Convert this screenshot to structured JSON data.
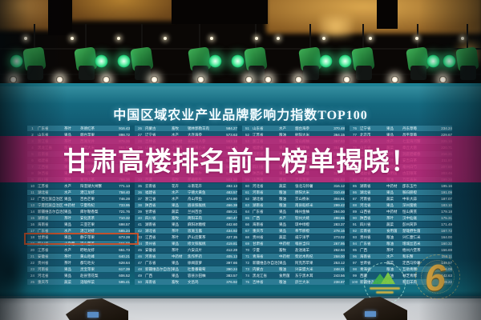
{
  "screen": {
    "title": "中国区域农业产业品牌影响力指数TOP100",
    "banner": {
      "text": "甘肃高楼排名前十榜单揭晓！",
      "color": "#c72276"
    },
    "logo": {
      "numeral": "6"
    },
    "highlight": {
      "group_index": 0,
      "rank": 18,
      "border_color": "#c2512c"
    },
    "table": {
      "groups": [
        [
          [
            1,
            "广东省",
            "茶叶",
            "英德红茶",
            "916.43"
          ],
          [
            2,
            "山东省",
            "果品",
            "烟台苹果",
            "898.72"
          ],
          [
            3,
            "浙江省",
            "茶叶",
            "西湖龙井",
            "875.26"
          ],
          [
            4,
            "黑龙江省",
            "粮油",
            "五常大米",
            "861.90"
          ],
          [
            5,
            "云南省",
            "茶叶",
            "普洱茶",
            "843.57"
          ],
          [
            6,
            "福建省",
            "茶叶",
            "安溪铁观音",
            "828.14"
          ],
          [
            7,
            "江西省",
            "果品",
            "赣南脐橙",
            "815.62"
          ],
          [
            8,
            "陕西省",
            "果品",
            "洛川苹果",
            "801.48"
          ],
          [
            9,
            "四川省",
            "茶叶",
            "蒙顶山茶",
            "786.35"
          ],
          [
            10,
            "江苏省",
            "水产",
            "阳澄湖大闸蟹",
            "771.13"
          ],
          [
            11,
            "湖北省",
            "水产",
            "潜江龙虾",
            "758.40"
          ],
          [
            12,
            "广西壮族自治区",
            "果品",
            "百色芒果",
            "746.28"
          ],
          [
            13,
            "宁夏回族自治区",
            "中药材",
            "宁夏枸杞",
            "733.95"
          ],
          [
            14,
            "新疆维吾尔自治区",
            "果品",
            "库尔勒香梨",
            "721.76"
          ],
          [
            15,
            "湖南省",
            "茶叶",
            "安化黑茶",
            "710.32"
          ],
          [
            16,
            "海南省",
            "果品",
            "三亚芒果",
            "698.57"
          ],
          [
            17,
            "广东省",
            "水产",
            "湛江对虾",
            "685.24"
          ],
          [
            18,
            "甘肃省",
            "果品",
            "静宁苹果",
            "673.28"
          ],
          [
            19,
            "四川省",
            "小杂粮",
            "凉山苦荞",
            "661.90"
          ],
          [
            20,
            "江苏省",
            "水产",
            "盱眙龙虾",
            "651.73"
          ],
          [
            21,
            "安徽省",
            "茶叶",
            "黄山毛峰",
            "640.21"
          ],
          [
            22,
            "贵州省",
            "茶叶",
            "都匀毛尖",
            "628.64"
          ],
          [
            23,
            "河南省",
            "果品",
            "灵宝苹果",
            "617.39"
          ],
          [
            24,
            "河北省",
            "果品",
            "赵县雪花梨",
            "606.52"
          ],
          [
            25,
            "重庆市",
            "蔬菜",
            "涪陵榨菜",
            "595.41"
          ]
        ],
        [
          [
            26,
            "内蒙古",
            "畜牧",
            "锡林郭勒羊肉",
            "584.27"
          ],
          [
            27,
            "辽宁省",
            "水产",
            "大连海参",
            "573.63"
          ],
          [
            28,
            "吉林省",
            "中药材",
            "长白山人参",
            "562.18"
          ],
          [
            29,
            "山西省",
            "小杂粮",
            "沁州黄小米",
            "551.40"
          ],
          [
            30,
            "北京市",
            "果品",
            "平谷大桃",
            "540.96"
          ],
          [
            31,
            "天津市",
            "果品",
            "盘山磨盘柿",
            "530.72"
          ],
          [
            32,
            "山东省",
            "蔬菜",
            "寿光蔬菜",
            "520.35"
          ],
          [
            33,
            "青海省",
            "畜牧",
            "青海牦牛",
            "510.84"
          ],
          [
            34,
            "西藏",
            "畜牧",
            "那曲牦牛",
            "501.26"
          ],
          [
            35,
            "云南省",
            "花卉",
            "斗南花卉",
            "492.13"
          ],
          [
            36,
            "福建省",
            "水产",
            "宁德大黄鱼",
            "483.57"
          ],
          [
            37,
            "浙江省",
            "水产",
            "舟山带鱼",
            "474.90"
          ],
          [
            38,
            "陕西省",
            "果品",
            "眉县猕猴桃",
            "466.38"
          ],
          [
            39,
            "甘肃省",
            "蔬菜",
            "兰州百合",
            "458.21"
          ],
          [
            40,
            "四川省",
            "畜牧",
            "简阳羊肉",
            "450.47"
          ],
          [
            41,
            "湖南省",
            "果品",
            "麻阳冰糖橙",
            "442.60"
          ],
          [
            42,
            "湖北省",
            "茶叶",
            "恩施玉露",
            "434.92"
          ],
          [
            43,
            "江西省",
            "茶叶",
            "庐山云雾茶",
            "427.35"
          ],
          [
            44,
            "贵州省",
            "果品",
            "修文猕猴桃",
            "419.81"
          ],
          [
            45,
            "安徽省",
            "茶叶",
            "六安瓜片",
            "412.28"
          ],
          [
            46,
            "河南省",
            "中药材",
            "焦作怀药",
            "405.13"
          ],
          [
            47,
            "广东省",
            "果品",
            "徐闻菠萝",
            "397.66"
          ],
          [
            48,
            "新疆维吾尔自治区",
            "果品",
            "吐鲁番葡萄",
            "390.24"
          ],
          [
            49,
            "广西",
            "果品",
            "容县沙田柚",
            "383.57"
          ],
          [
            50,
            "海南省",
            "畜牧",
            "文昌鸡",
            "376.92"
          ]
        ],
        [
          [
            51,
            "山东省",
            "水产",
            "烟台海参",
            "370.48"
          ],
          [
            52,
            "江苏省",
            "粮油",
            "射阳大米",
            "364.15"
          ],
          [
            53,
            "浙江省",
            "果品",
            "常山胡柚",
            "357.83"
          ],
          [
            54,
            "福建省",
            "果品",
            "平和蜜柚",
            "351.62"
          ],
          [
            55,
            "云南省",
            "中药材",
            "文山三七",
            "345.50"
          ],
          [
            56,
            "贵州省",
            "中药材",
            "赤水金钗石斛",
            "339.46"
          ],
          [
            57,
            "四川省",
            "果品",
            "安岳柠檬",
            "333.51"
          ],
          [
            58,
            "陕西省",
            "果品",
            "商洛核桃",
            "327.63"
          ],
          [
            59,
            "山西省",
            "果品",
            "吉县苹果",
            "321.84"
          ],
          [
            60,
            "河北省",
            "蔬菜",
            "张北马铃薯",
            "316.12"
          ],
          [
            61,
            "河南省",
            "粮油",
            "原阳大米",
            "310.48"
          ],
          [
            62,
            "湖北省",
            "粮油",
            "京山桥米",
            "304.91"
          ],
          [
            63,
            "湖南省",
            "粮油",
            "南县稻虾米",
            "299.42"
          ],
          [
            64,
            "广东省",
            "果品",
            "梅州金柚",
            "294.00"
          ],
          [
            65,
            "广西",
            "水产",
            "钦州大蚝",
            "288.65"
          ],
          [
            66,
            "海南省",
            "果品",
            "琼中绿橙",
            "283.37"
          ],
          [
            67,
            "重庆市",
            "果品",
            "奉节脐橙",
            "278.16"
          ],
          [
            68,
            "贵州省",
            "蔬菜",
            "威宁洋芋",
            "273.02"
          ],
          [
            69,
            "甘肃省",
            "中药材",
            "岷县当归",
            "267.95"
          ],
          [
            70,
            "宁夏",
            "畜牧",
            "盐池滩羊",
            "262.94"
          ],
          [
            71,
            "青海省",
            "中药材",
            "柴达木枸杞",
            "258.00"
          ],
          [
            72,
            "新疆维吾尔自治区",
            "果品",
            "阿克苏苹果",
            "253.12"
          ],
          [
            73,
            "内蒙古",
            "粮油",
            "兴安盟大米",
            "248.31"
          ],
          [
            74,
            "黑龙江省",
            "食用菌",
            "东宁黑木耳",
            "243.56"
          ],
          [
            75,
            "吉林省",
            "粮油",
            "舒兰大米",
            "238.87"
          ]
        ],
        [
          [
            76,
            "辽宁省",
            "果品",
            "丹东草莓",
            "234.24"
          ],
          [
            77,
            "北京市",
            "果品",
            "昌平草莓",
            "229.67"
          ],
          [
            78,
            "天津市",
            "水产",
            "七里海河蟹",
            "225.16"
          ],
          [
            79,
            "山东省",
            "蔬菜",
            "章丘大葱",
            "220.71"
          ],
          [
            80,
            "江苏省",
            "茶叶",
            "洞庭碧螺春",
            "216.31"
          ],
          [
            81,
            "浙江省",
            "茶叶",
            "安吉白茶",
            "211.97"
          ],
          [
            82,
            "安徽省",
            "中药材",
            "亳州白芍",
            "207.69"
          ],
          [
            83,
            "福建省",
            "食用菌",
            "古田银耳",
            "203.46"
          ],
          [
            84,
            "江西省",
            "粮油",
            "万年贡米",
            "199.28"
          ],
          [
            85,
            "湖南省",
            "中药材",
            "邵东玉竹",
            "195.16"
          ],
          [
            86,
            "湖北省",
            "果品",
            "秭归脐橙",
            "191.09"
          ],
          [
            87,
            "河南省",
            "蔬菜",
            "中牟大蒜",
            "187.07"
          ],
          [
            88,
            "河北省",
            "果品",
            "深州蜜桃",
            "183.10"
          ],
          [
            89,
            "山西省",
            "中药材",
            "恒山黄芪",
            "179.18"
          ],
          [
            90,
            "陕西省",
            "茶叶",
            "汉中仙毫",
            "175.31"
          ],
          [
            91,
            "四川省",
            "蔬菜",
            "彭州莴笋",
            "171.49"
          ],
          [
            92,
            "云南省",
            "食用菌",
            "楚雄野生菌",
            "167.72"
          ],
          [
            93,
            "贵州省",
            "粮油",
            "兴仁薏仁米",
            "164.00"
          ],
          [
            94,
            "广东省",
            "粮油",
            "增城丝苗米",
            "160.32"
          ],
          [
            95,
            "广西",
            "茶叶",
            "梧州六堡茶",
            "156.69"
          ],
          [
            96,
            "海南省",
            "水产",
            "和乐蟹",
            "153.11"
          ],
          [
            97,
            "甘肃省",
            "蔬菜",
            "定西马铃薯",
            "149.57"
          ],
          [
            98,
            "青海省",
            "粮油",
            "互助青稞",
            "146.08"
          ],
          [
            99,
            "西藏",
            "粮油",
            "林芝青稞",
            "142.63"
          ],
          [
            100,
            "新疆维吾尔自治区",
            "畜牧",
            "和田羊肉",
            "139.22"
          ]
        ]
      ]
    }
  }
}
